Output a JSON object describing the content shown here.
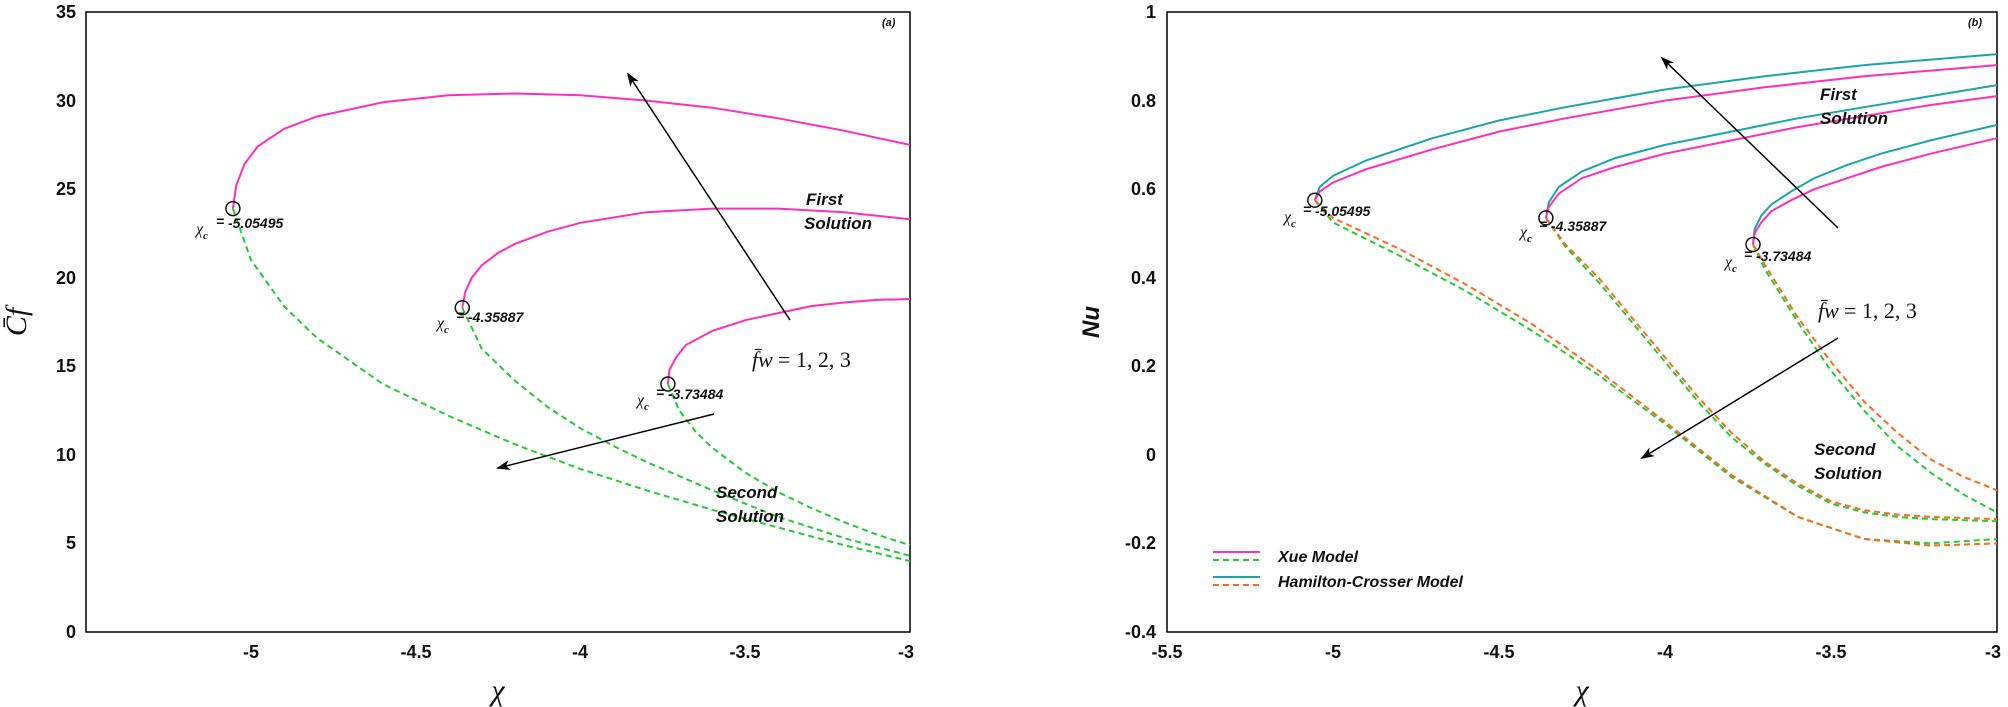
{
  "chart_data": [
    {
      "type": "line",
      "tag": "(a)",
      "xlabel": "χ",
      "ylabel": "C̄f",
      "xlim": [
        -5.5,
        -3
      ],
      "ylim": [
        0,
        35
      ],
      "xticks": [
        "-5",
        "-4.5",
        "-4",
        "-3.5",
        "-3"
      ],
      "yticks": [
        "0",
        "5",
        "10",
        "15",
        "20",
        "25",
        "30",
        "35"
      ],
      "grid": false,
      "param_label": {
        "math": "f̄w",
        "text": " = 1, 2, 3"
      },
      "annotations": {
        "first": [
          "First",
          "Solution"
        ],
        "second": [
          "Second",
          "Solution"
        ]
      },
      "critical_points": [
        {
          "x": -5.05495,
          "y": 23.9,
          "label": "-5.05495"
        },
        {
          "x": -4.35887,
          "y": 18.3,
          "label": "-4.35887"
        },
        {
          "x": -3.73484,
          "y": 14.0,
          "label": "-3.73484"
        }
      ],
      "series": [
        {
          "branch": "first",
          "color": "#ff2fb8",
          "x": [
            -5.05495,
            -5.045,
            -5.02,
            -4.98,
            -4.9,
            -4.8,
            -4.6,
            -4.4,
            -4.2,
            -4.0,
            -3.8,
            -3.6,
            -3.4,
            -3.2,
            -3.0
          ],
          "y": [
            23.9,
            25.2,
            26.4,
            27.4,
            28.4,
            29.1,
            29.9,
            30.3,
            30.4,
            30.3,
            30.0,
            29.6,
            29.0,
            28.3,
            27.5
          ]
        },
        {
          "branch": "first",
          "color": "#ff2fb8",
          "x": [
            -4.35887,
            -4.35,
            -4.33,
            -4.3,
            -4.25,
            -4.2,
            -4.1,
            -4.0,
            -3.8,
            -3.6,
            -3.4,
            -3.2,
            -3.0
          ],
          "y": [
            18.3,
            19.2,
            20.0,
            20.7,
            21.4,
            21.9,
            22.6,
            23.1,
            23.7,
            23.9,
            23.9,
            23.7,
            23.3
          ]
        },
        {
          "branch": "first",
          "color": "#ff2fb8",
          "x": [
            -3.73484,
            -3.73,
            -3.71,
            -3.68,
            -3.6,
            -3.5,
            -3.4,
            -3.3,
            -3.2,
            -3.1,
            -3.0
          ],
          "y": [
            14.0,
            14.8,
            15.5,
            16.2,
            17.0,
            17.6,
            18.0,
            18.4,
            18.6,
            18.75,
            18.8
          ]
        },
        {
          "branch": "second",
          "color": "#22cc33",
          "x": [
            -5.05495,
            -5.0,
            -4.9,
            -4.8,
            -4.6,
            -4.4,
            -4.2,
            -4.0,
            -3.8,
            -3.6,
            -3.4,
            -3.2,
            -3.0
          ],
          "y": [
            23.9,
            21.0,
            18.4,
            16.6,
            14.0,
            12.2,
            10.6,
            9.2,
            8.0,
            6.9,
            5.9,
            4.9,
            4.0
          ]
        },
        {
          "branch": "second",
          "color": "#22cc33",
          "x": [
            -4.35887,
            -4.3,
            -4.2,
            -4.1,
            -4.0,
            -3.9,
            -3.8,
            -3.6,
            -3.4,
            -3.2,
            -3.0
          ],
          "y": [
            18.3,
            16.0,
            14.2,
            12.7,
            11.5,
            10.5,
            9.6,
            8.0,
            6.5,
            5.3,
            4.3
          ]
        },
        {
          "branch": "second",
          "color": "#22cc33",
          "x": [
            -3.73484,
            -3.7,
            -3.65,
            -3.6,
            -3.5,
            -3.4,
            -3.3,
            -3.2,
            -3.1,
            -3.0
          ],
          "y": [
            14.0,
            12.5,
            11.3,
            10.4,
            9.0,
            7.9,
            7.0,
            6.2,
            5.5,
            4.9
          ]
        }
      ]
    },
    {
      "type": "line",
      "tag": "(b)",
      "xlabel": "χ",
      "ylabel": "Nu",
      "xlim": [
        -5.5,
        -3
      ],
      "ylim": [
        -0.4,
        1.0
      ],
      "xticks": [
        "-5.5",
        "-5",
        "-4.5",
        "-4",
        "-3.5",
        "-3"
      ],
      "yticks": [
        "-0.4",
        "-0.2",
        "0",
        "0.2",
        "0.4",
        "0.6",
        "0.8",
        "1"
      ],
      "grid": false,
      "param_label": {
        "math": "f̄w",
        "text": " = 1, 2, 3"
      },
      "annotations": {
        "first": [
          "First",
          "Solution"
        ],
        "second": [
          "Second",
          "Solution"
        ]
      },
      "critical_points": [
        {
          "x": -5.05495,
          "y": 0.575,
          "label": "-5.05495"
        },
        {
          "x": -4.35887,
          "y": 0.535,
          "label": "-4.35887"
        },
        {
          "x": -3.73484,
          "y": 0.475,
          "label": "-3.73484"
        }
      ],
      "legend": {
        "position": "bottom-left",
        "entries": [
          {
            "label": "Xue Model",
            "solid": "#ff2fb8",
            "dashed": "#22cc33"
          },
          {
            "label": "Hamilton-Crosser Model",
            "solid": "#1aa6a6",
            "dashed": "#ff6a1a"
          }
        ]
      },
      "series": [
        {
          "model": "Hamilton-Crosser",
          "branch": "first",
          "color": "#1aa6a6",
          "x": [
            -5.05495,
            -5.04,
            -5.0,
            -4.9,
            -4.7,
            -4.5,
            -4.3,
            -4.0,
            -3.7,
            -3.4,
            -3.0
          ],
          "y": [
            0.575,
            0.605,
            0.63,
            0.665,
            0.715,
            0.755,
            0.785,
            0.825,
            0.855,
            0.88,
            0.905
          ]
        },
        {
          "model": "Xue",
          "branch": "first",
          "color": "#ff2fb8",
          "x": [
            -5.05495,
            -5.04,
            -5.0,
            -4.9,
            -4.7,
            -4.5,
            -4.3,
            -4.0,
            -3.7,
            -3.4,
            -3.0
          ],
          "y": [
            0.575,
            0.595,
            0.615,
            0.645,
            0.69,
            0.73,
            0.76,
            0.8,
            0.83,
            0.855,
            0.88
          ]
        },
        {
          "model": "Hamilton-Crosser",
          "branch": "first",
          "color": "#1aa6a6",
          "x": [
            -4.35887,
            -4.35,
            -4.32,
            -4.25,
            -4.15,
            -4.0,
            -3.8,
            -3.6,
            -3.4,
            -3.2,
            -3.0
          ],
          "y": [
            0.535,
            0.57,
            0.605,
            0.64,
            0.67,
            0.7,
            0.73,
            0.76,
            0.785,
            0.81,
            0.835
          ]
        },
        {
          "model": "Xue",
          "branch": "first",
          "color": "#ff2fb8",
          "x": [
            -4.35887,
            -4.35,
            -4.32,
            -4.25,
            -4.15,
            -4.0,
            -3.8,
            -3.6,
            -3.4,
            -3.2,
            -3.0
          ],
          "y": [
            0.535,
            0.56,
            0.59,
            0.625,
            0.65,
            0.68,
            0.71,
            0.74,
            0.765,
            0.79,
            0.81
          ]
        },
        {
          "model": "Hamilton-Crosser",
          "branch": "first",
          "color": "#1aa6a6",
          "x": [
            -3.73484,
            -3.73,
            -3.71,
            -3.68,
            -3.62,
            -3.55,
            -3.45,
            -3.35,
            -3.2,
            -3.0
          ],
          "y": [
            0.475,
            0.51,
            0.54,
            0.565,
            0.595,
            0.625,
            0.655,
            0.68,
            0.71,
            0.745
          ]
        },
        {
          "model": "Xue",
          "branch": "first",
          "color": "#ff2fb8",
          "x": [
            -3.73484,
            -3.73,
            -3.71,
            -3.68,
            -3.62,
            -3.55,
            -3.45,
            -3.35,
            -3.2,
            -3.0
          ],
          "y": [
            0.475,
            0.5,
            0.525,
            0.55,
            0.575,
            0.6,
            0.625,
            0.65,
            0.68,
            0.715
          ]
        },
        {
          "model": "Xue",
          "branch": "second",
          "color": "#22cc33",
          "x": [
            -5.05495,
            -5.0,
            -4.8,
            -4.6,
            -4.4,
            -4.2,
            -4.0,
            -3.8,
            -3.6,
            -3.4,
            -3.2,
            -3.0
          ],
          "y": [
            0.575,
            0.525,
            0.45,
            0.37,
            0.28,
            0.18,
            0.07,
            -0.05,
            -0.14,
            -0.19,
            -0.2,
            -0.19
          ]
        },
        {
          "model": "Hamilton-Crosser",
          "branch": "second",
          "color": "#ff6a1a",
          "x": [
            -5.05495,
            -5.0,
            -4.8,
            -4.6,
            -4.4,
            -4.2,
            -4.0,
            -3.8,
            -3.6,
            -3.4,
            -3.2,
            -3.0
          ],
          "y": [
            0.575,
            0.535,
            0.465,
            0.385,
            0.295,
            0.19,
            0.075,
            -0.045,
            -0.14,
            -0.19,
            -0.205,
            -0.2
          ]
        },
        {
          "model": "Xue",
          "branch": "second",
          "color": "#22cc33",
          "x": [
            -4.35887,
            -4.3,
            -4.2,
            -4.1,
            -4.0,
            -3.9,
            -3.8,
            -3.7,
            -3.6,
            -3.5,
            -3.4,
            -3.3,
            -3.2,
            -3.0
          ],
          "y": [
            0.535,
            0.47,
            0.39,
            0.3,
            0.21,
            0.12,
            0.04,
            -0.02,
            -0.07,
            -0.11,
            -0.13,
            -0.14,
            -0.145,
            -0.15
          ]
        },
        {
          "model": "Hamilton-Crosser",
          "branch": "second",
          "color": "#ff6a1a",
          "x": [
            -4.35887,
            -4.3,
            -4.2,
            -4.1,
            -4.0,
            -3.9,
            -3.8,
            -3.7,
            -3.6,
            -3.5,
            -3.4,
            -3.3,
            -3.2,
            -3.0
          ],
          "y": [
            0.535,
            0.475,
            0.4,
            0.31,
            0.22,
            0.13,
            0.05,
            -0.015,
            -0.065,
            -0.105,
            -0.125,
            -0.135,
            -0.14,
            -0.145
          ]
        },
        {
          "model": "Xue",
          "branch": "second",
          "color": "#22cc33",
          "x": [
            -3.73484,
            -3.7,
            -3.65,
            -3.6,
            -3.55,
            -3.5,
            -3.45,
            -3.4,
            -3.3,
            -3.2,
            -3.1,
            -3.0
          ],
          "y": [
            0.475,
            0.42,
            0.36,
            0.3,
            0.245,
            0.19,
            0.145,
            0.1,
            0.02,
            -0.04,
            -0.09,
            -0.13
          ]
        },
        {
          "model": "Hamilton-Crosser",
          "branch": "second",
          "color": "#ff6a1a",
          "x": [
            -3.73484,
            -3.7,
            -3.65,
            -3.6,
            -3.55,
            -3.5,
            -3.45,
            -3.4,
            -3.3,
            -3.2,
            -3.1,
            -3.0
          ],
          "y": [
            0.475,
            0.43,
            0.37,
            0.31,
            0.26,
            0.21,
            0.165,
            0.12,
            0.05,
            -0.01,
            -0.05,
            -0.08
          ]
        }
      ]
    }
  ]
}
